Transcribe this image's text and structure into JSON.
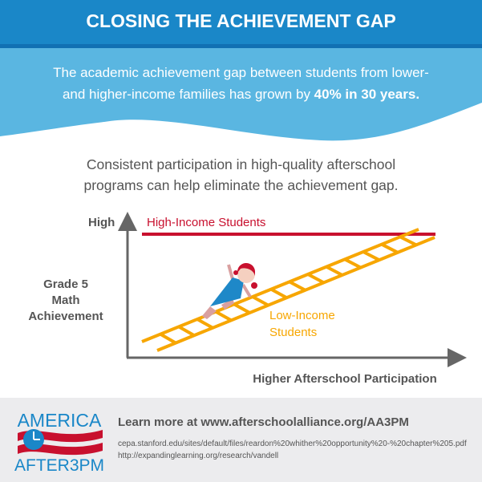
{
  "header": {
    "title": "CLOSING THE ACHIEVEMENT GAP"
  },
  "intro": {
    "line1": "The academic achievement gap between students from lower-",
    "line2_prefix": "and higher-income families has grown by ",
    "line2_bold": "40% in 30 years."
  },
  "subheading": {
    "line1": "Consistent participation in high-quality afterschool",
    "line2": "programs can help eliminate the achievement gap."
  },
  "diagram": {
    "y_top_label": "High",
    "y_axis_label": [
      "Grade 5",
      "Math",
      "Achievement"
    ],
    "x_axis_label": "Higher Afterschool Participation",
    "high_income_label": "High-Income Students",
    "low_income_label": [
      "Low-Income",
      "Students"
    ],
    "colors": {
      "high_income": "#c8102e",
      "low_income": "#f7a600",
      "axis": "#666666"
    }
  },
  "footer": {
    "logo_top": "AMERICA",
    "logo_bottom": "AFTER3PM",
    "learn_more": "Learn more at www.afterschoolalliance.org/AA3PM",
    "sources": [
      "cepa.stanford.edu/sites/default/files/reardon%20whither%20opportunity%20-%20chapter%205.pdf",
      "http://expandinglearning.org/research/vandell"
    ]
  },
  "colors": {
    "header_blue": "#1a87c8",
    "light_blue": "#5ab6e1",
    "footer_bg": "#ececee"
  }
}
